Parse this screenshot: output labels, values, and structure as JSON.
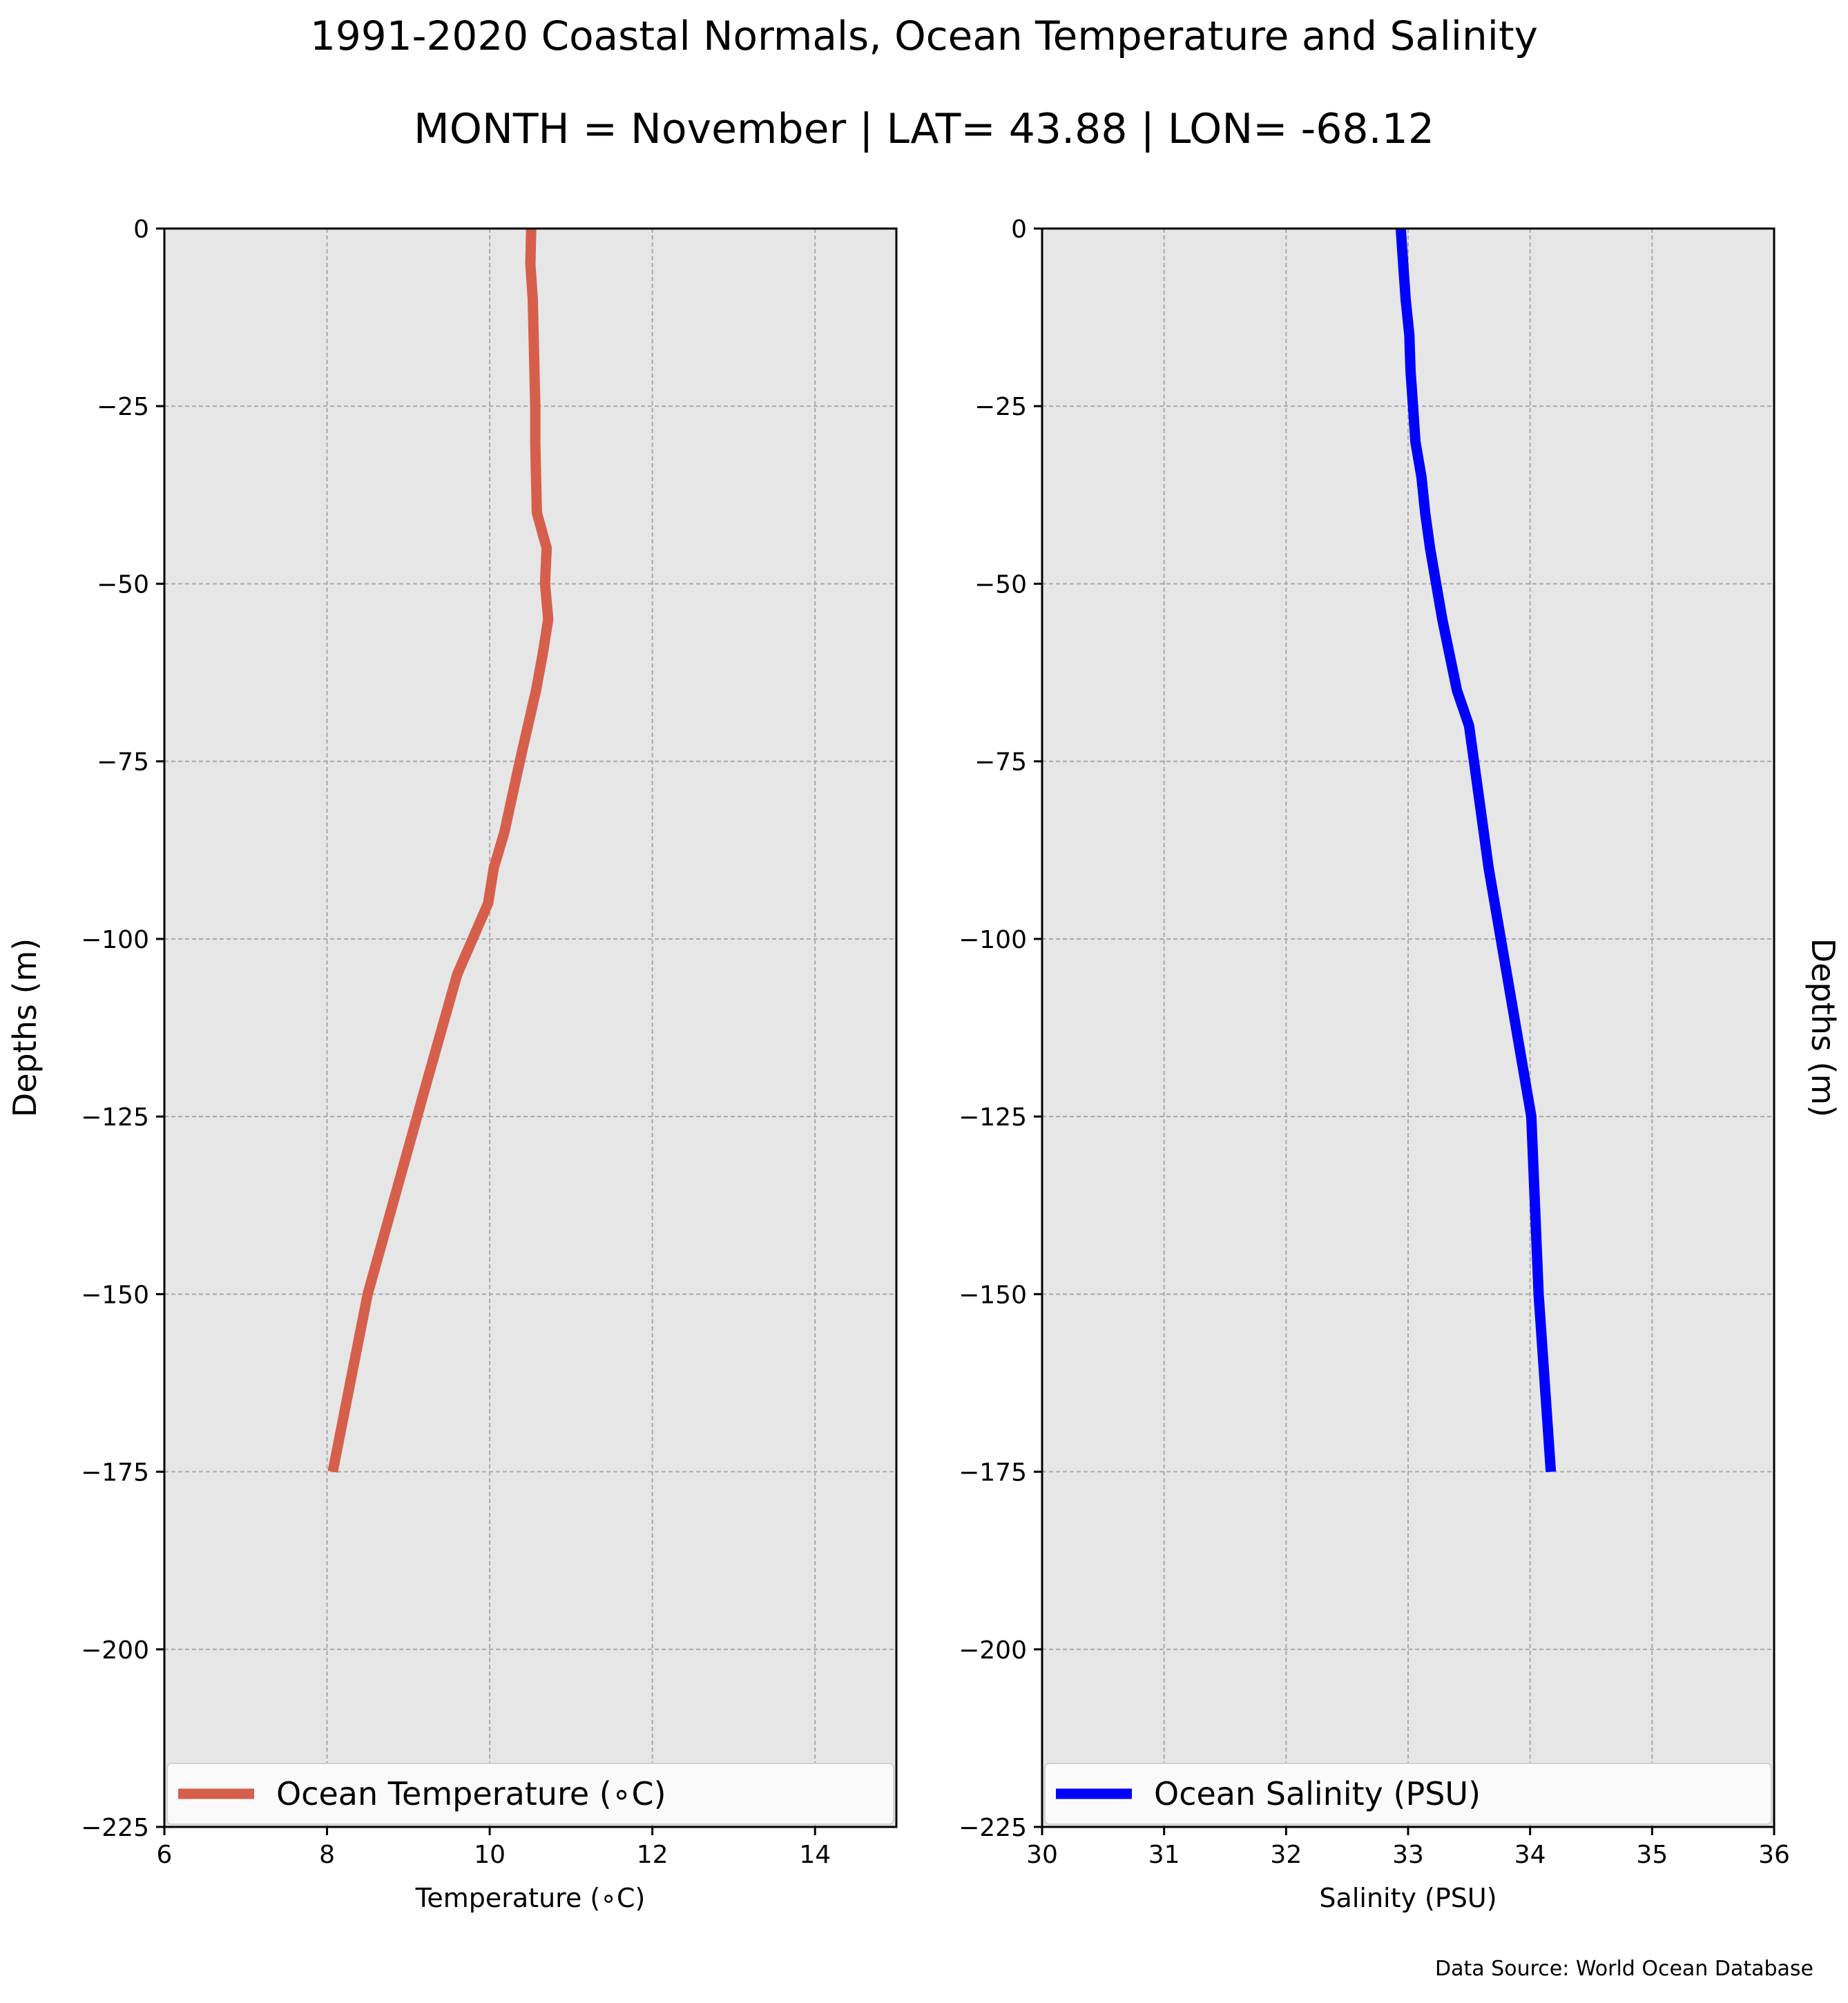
{
  "title": "1991-2020 Coastal Normals, Ocean Temperature and Salinity",
  "subtitle": "MONTH = November | LAT= 43.88 | LON= -68.12",
  "source": "Data Source: World Ocean Database",
  "chart_data": [
    {
      "type": "line",
      "xlabel": "Temperature (∘C)",
      "ylabel": "Depths (m)",
      "xlim": [
        6,
        15
      ],
      "ylim": [
        -225,
        0
      ],
      "xticks": [
        6,
        8,
        10,
        12,
        14
      ],
      "yticks": [
        0,
        -25,
        -50,
        -75,
        -100,
        -125,
        -150,
        -175,
        -200,
        -225
      ],
      "grid": true,
      "legend_placement": "bottom",
      "series": [
        {
          "name": "Ocean Temperature (∘C)",
          "color": "#d65f4c",
          "x": [
            10.51,
            10.5,
            10.53,
            10.54,
            10.55,
            10.56,
            10.56,
            10.57,
            10.58,
            10.7,
            10.68,
            10.72,
            10.65,
            10.57,
            10.37,
            10.18,
            10.05,
            9.98,
            9.6,
            9.23,
            8.5,
            8.07
          ],
          "y": [
            0,
            -5,
            -10,
            -15,
            -20,
            -25,
            -30,
            -35,
            -40,
            -45,
            -50,
            -55,
            -60,
            -65,
            -75,
            -85,
            -90,
            -95,
            -105,
            -120,
            -150,
            -175
          ]
        }
      ]
    },
    {
      "type": "line",
      "xlabel": "Salinity (PSU)",
      "ylabel": "Depths (m)",
      "xlim": [
        30,
        36
      ],
      "ylim": [
        -225,
        0
      ],
      "xticks": [
        30,
        31,
        32,
        33,
        34,
        35,
        36
      ],
      "yticks": [
        0,
        -25,
        -50,
        -75,
        -100,
        -125,
        -150,
        -175,
        -200,
        -225
      ],
      "grid": true,
      "legend_placement": "bottom",
      "series": [
        {
          "name": "Ocean Salinity (PSU)",
          "color": "#0000ff",
          "x": [
            32.94,
            32.96,
            32.98,
            33.01,
            33.02,
            33.04,
            33.06,
            33.11,
            33.14,
            33.18,
            33.23,
            33.28,
            33.34,
            33.4,
            33.5,
            33.58,
            33.66,
            34.01,
            34.07,
            34.17
          ],
          "y": [
            0,
            -5,
            -10,
            -15,
            -20,
            -25,
            -30,
            -35,
            -40,
            -45,
            -50,
            -55,
            -60,
            -65,
            -70,
            -80,
            -90,
            -125,
            -150,
            -175
          ]
        }
      ]
    }
  ]
}
